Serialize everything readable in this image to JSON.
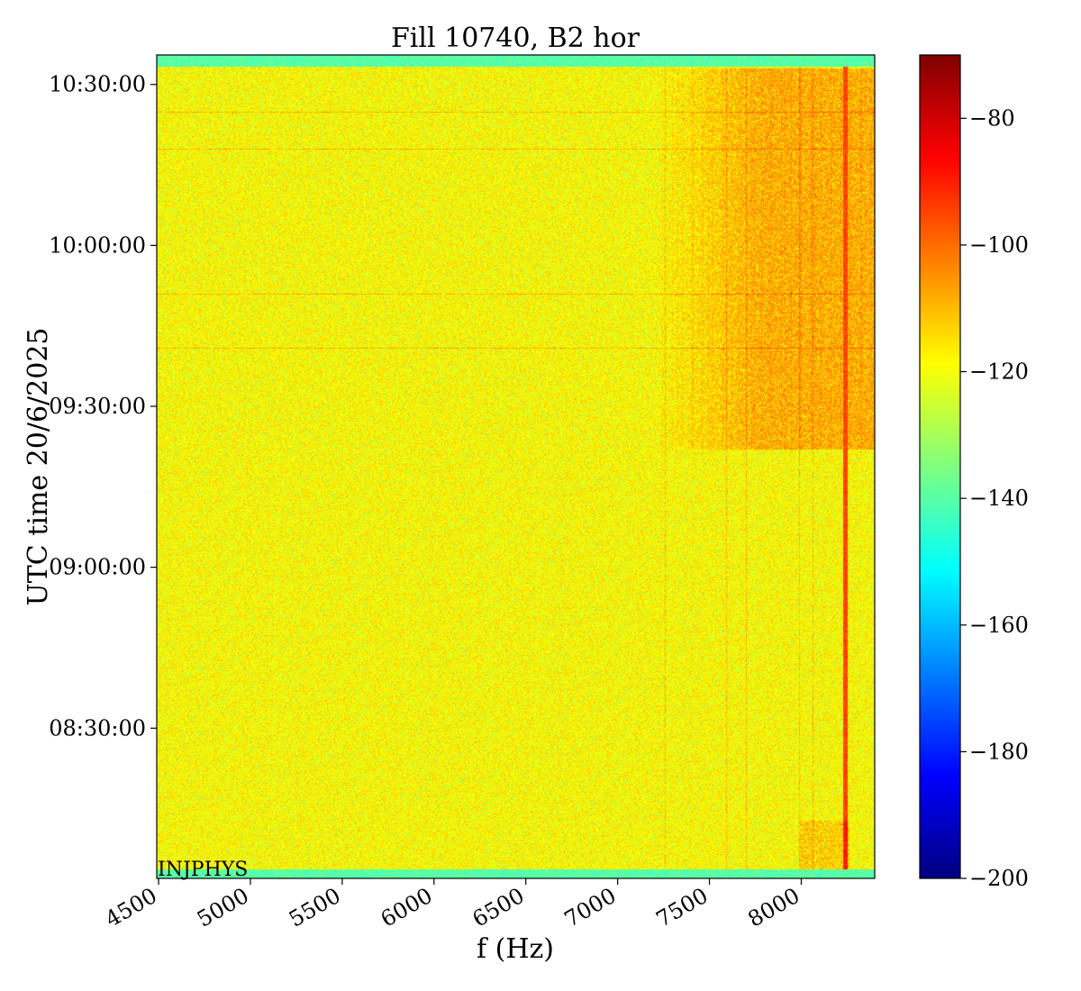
{
  "chart_data": {
    "type": "heatmap",
    "title": "Fill 10740, B2 hor",
    "xlabel": "f (Hz)",
    "ylabel": "UTC time 20/6/2025",
    "x_range": [
      4490,
      8400
    ],
    "x_ticks": [
      4500,
      5000,
      5500,
      6000,
      6500,
      7000,
      7500,
      8000
    ],
    "y_range": [
      "08:02:00",
      "10:35:30"
    ],
    "y_ticks": [
      "08:30:00",
      "09:00:00",
      "09:30:00",
      "10:00:00",
      "10:30:00"
    ],
    "colorbar": {
      "range": [
        -200,
        -70
      ],
      "ticks": [
        -200,
        -180,
        -160,
        -140,
        -120,
        -100,
        -80
      ],
      "colormap": "jet",
      "colors": [
        "#00007f",
        "#0000ff",
        "#007fff",
        "#00ffff",
        "#7fff7f",
        "#ffff00",
        "#ff7f00",
        "#ff0000",
        "#7f0000"
      ]
    },
    "typical_level": -118,
    "noise_edge_level": -140,
    "annotation": "INJPHYS",
    "strong_lines_hz": [
      8245,
      8235
    ],
    "weak_lines_hz": [
      7255,
      7590,
      7700,
      7990,
      8060
    ],
    "elevated_band": {
      "f_from": 7200,
      "f_to": 8400,
      "start": "09:22:00",
      "end": "10:33:00"
    },
    "horizontal_streaks": [
      "10:25:00",
      "10:18:00",
      "09:51:00",
      "09:41:00"
    ]
  }
}
